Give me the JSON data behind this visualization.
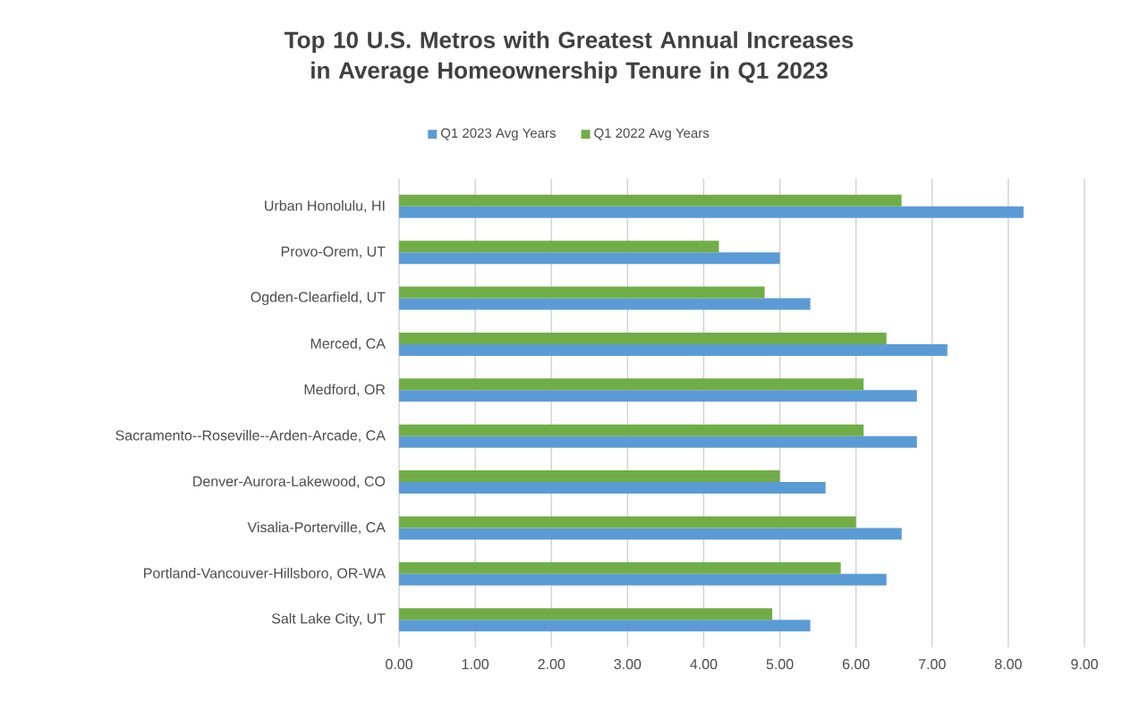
{
  "chart_data": {
    "type": "bar",
    "orientation": "horizontal",
    "title": "Top 10 U.S. Metros with Greatest Annual Increases in Average Homeownership Tenure in Q1 2023",
    "categories": [
      "Urban Honolulu, HI",
      "Provo-Orem, UT",
      "Ogden-Clearfield, UT",
      "Merced, CA",
      "Medford, OR",
      "Sacramento--Roseville--Arden-Arcade, CA",
      "Denver-Aurora-Lakewood, CO",
      "Visalia-Porterville, CA",
      "Portland-Vancouver-Hillsboro, OR-WA",
      "Salt Lake City, UT"
    ],
    "series": [
      {
        "name": "Q1 2023 Avg Years",
        "color": "#5b9bd5",
        "values": [
          8.2,
          5.0,
          5.4,
          7.2,
          6.8,
          6.8,
          5.6,
          6.6,
          6.4,
          5.4
        ]
      },
      {
        "name": "Q1 2022 Avg Years",
        "color": "#70ad47",
        "values": [
          6.6,
          4.2,
          4.8,
          6.4,
          6.1,
          6.1,
          5.0,
          6.0,
          5.8,
          4.9
        ]
      }
    ],
    "xlim": [
      0,
      9
    ],
    "xticks": [
      {
        "value": 0,
        "label": "0.00"
      },
      {
        "value": 1,
        "label": "1.00"
      },
      {
        "value": 2,
        "label": "2.00"
      },
      {
        "value": 3,
        "label": "3.00"
      },
      {
        "value": 4,
        "label": "4.00"
      },
      {
        "value": 5,
        "label": "5.00"
      },
      {
        "value": 6,
        "label": "6.00"
      },
      {
        "value": 7,
        "label": "7.00"
      },
      {
        "value": 8,
        "label": "8.00"
      },
      {
        "value": 9,
        "label": "9.00"
      }
    ],
    "grid": "x",
    "legend": "top"
  }
}
